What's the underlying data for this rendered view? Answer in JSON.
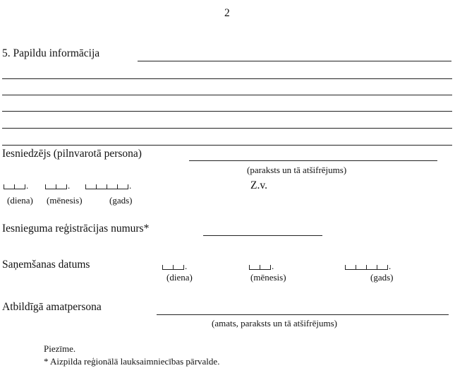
{
  "page_number": "2",
  "section5": {
    "heading": "5. Papildu informācija"
  },
  "applicant": {
    "label": "Iesniedzējs (pilnvarotā persona)",
    "caption": "(paraksts un tā atšifrējums)",
    "seal": "Z.v."
  },
  "date_labels": {
    "day": "(diena)",
    "month": "(mēnesis)",
    "year": "(gads)"
  },
  "registration": {
    "label": "Iesnieguma reģistrācijas numurs*"
  },
  "received": {
    "label": "Saņemšanas datums"
  },
  "official": {
    "label": "Atbildīgā amatpersona",
    "caption": "(amats, paraksts un tā atšifrējums)"
  },
  "note": {
    "title": "Piezīme.",
    "text": "* Aizpilda reģionālā lauksaimniecības pārvalde."
  }
}
